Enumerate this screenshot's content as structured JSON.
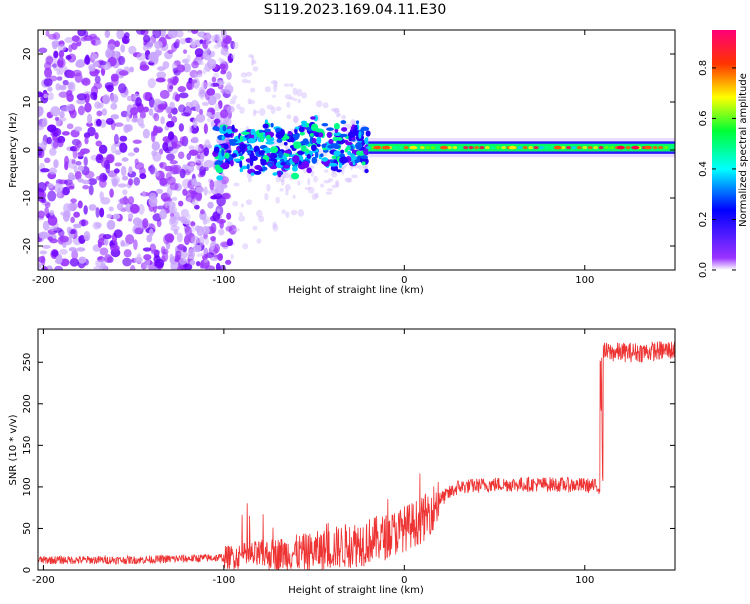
{
  "title": "S119.2023.169.04.11.E30",
  "colors": {
    "snr_line": "#ee3333",
    "axis": "#000000"
  },
  "chart_data": [
    {
      "type": "heatmap",
      "xlabel": "Height of straight line (km)",
      "ylabel": "Frequency (Hz)",
      "xlim": [
        -203,
        150
      ],
      "ylim": [
        -25,
        25
      ],
      "x_ticks": [
        -200,
        -100,
        0,
        100
      ],
      "y_ticks": [
        -20,
        -10,
        0,
        10,
        20
      ],
      "colorbar": {
        "label": "Normalized spectral amplitude",
        "range": [
          0,
          0.95
        ],
        "ticks": [
          0.0,
          0.2,
          0.4,
          0.6,
          0.8
        ],
        "colormap": [
          "#ffffff",
          "#9a33ff",
          "#0000ff",
          "#00ffff",
          "#00ff33",
          "#ffff00",
          "#ff3300",
          "#ff0077"
        ]
      },
      "signal_band": {
        "x_start": -20,
        "x_end": 150,
        "freq_center": 0.5,
        "half_width": 2
      },
      "transition_region": {
        "x_start": -120,
        "x_end": -20
      },
      "noise_region": {
        "x_start": -203,
        "x_end": -95
      }
    },
    {
      "type": "line",
      "xlabel": "Height of straight line (km)",
      "ylabel": "SNR (10 * v/v)",
      "xlim": [
        -203,
        150
      ],
      "ylim": [
        0,
        290
      ],
      "x_ticks": [
        -200,
        -100,
        0,
        100
      ],
      "y_ticks": [
        0,
        50,
        100,
        150,
        200,
        250
      ],
      "trend_x": [
        -203,
        -150,
        -100,
        -80,
        -50,
        -30,
        -10,
        0,
        10,
        20,
        30,
        50,
        80,
        100,
        109,
        110,
        130,
        150
      ],
      "trend_y": [
        12,
        12,
        15,
        18,
        22,
        30,
        40,
        50,
        60,
        85,
        100,
        103,
        103,
        102,
        100,
        262,
        262,
        265
      ]
    }
  ]
}
